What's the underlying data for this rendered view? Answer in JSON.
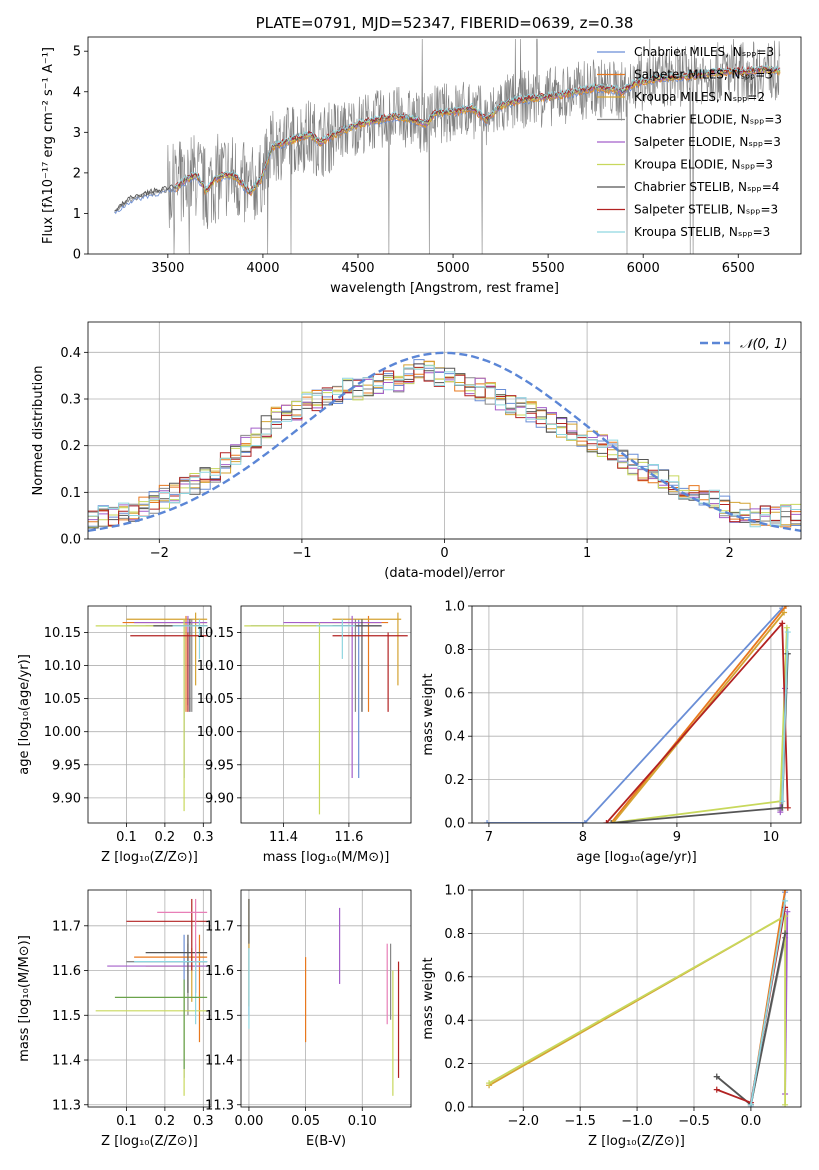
{
  "colors": [
    "#6a8ed6",
    "#e8781e",
    "#d4a332",
    "#888888",
    "#a45fc9",
    "#c8d85c",
    "#555555",
    "#b22222",
    "#8fd6e0",
    "#e87fb7",
    "#6aa34a",
    "#3f8fd0"
  ],
  "chart_data": [
    {
      "id": "spectrum",
      "type": "line",
      "title": "PLATE=0791, MJD=52347, FIBERID=0639, z=0.38",
      "xlabel": "wavelength [Angstrom, rest frame]",
      "ylabel": "Flux [fλ10⁻¹⁷ erg cm⁻² s⁻¹ A⁻¹]",
      "xlim": [
        3080,
        6830
      ],
      "ylim": [
        0,
        5.35
      ],
      "xticks": [
        3500,
        4000,
        4500,
        5000,
        5500,
        6000,
        6500
      ],
      "yticks": [
        0,
        1,
        2,
        3,
        4,
        5
      ],
      "grid": false,
      "legend_position": "top-right",
      "continuum": [
        [
          3220,
          1.05
        ],
        [
          3300,
          1.35
        ],
        [
          3400,
          1.5
        ],
        [
          3500,
          1.6
        ],
        [
          3550,
          1.65
        ],
        [
          3600,
          1.85
        ],
        [
          3650,
          1.95
        ],
        [
          3700,
          1.55
        ],
        [
          3750,
          1.85
        ],
        [
          3800,
          1.95
        ],
        [
          3860,
          1.9
        ],
        [
          3930,
          1.5
        ],
        [
          3990,
          1.85
        ],
        [
          4050,
          2.65
        ],
        [
          4150,
          2.8
        ],
        [
          4250,
          2.95
        ],
        [
          4300,
          2.75
        ],
        [
          4400,
          3.0
        ],
        [
          4500,
          3.2
        ],
        [
          4600,
          3.3
        ],
        [
          4700,
          3.4
        ],
        [
          4800,
          3.3
        ],
        [
          4860,
          3.2
        ],
        [
          4900,
          3.45
        ],
        [
          5000,
          3.5
        ],
        [
          5100,
          3.6
        ],
        [
          5175,
          3.3
        ],
        [
          5250,
          3.65
        ],
        [
          5350,
          3.8
        ],
        [
          5450,
          3.85
        ],
        [
          5550,
          3.9
        ],
        [
          5650,
          4.0
        ],
        [
          5750,
          4.1
        ],
        [
          5850,
          4.05
        ],
        [
          5890,
          4.0
        ],
        [
          5950,
          4.2
        ],
        [
          6050,
          4.3
        ],
        [
          6150,
          4.35
        ],
        [
          6250,
          4.4
        ],
        [
          6350,
          4.45
        ],
        [
          6450,
          4.5
        ],
        [
          6550,
          4.5
        ],
        [
          6650,
          4.55
        ],
        [
          6720,
          4.5
        ]
      ],
      "series": [
        {
          "name": "Chabrier MILES, Nₛₚₚ=3"
        },
        {
          "name": "Salpeter MILES, Nₛₚₚ=3"
        },
        {
          "name": "Kroupa MILES, Nₛₚₚ=2"
        },
        {
          "name": "Chabrier ELODIE, Nₛₚₚ=3"
        },
        {
          "name": "Salpeter ELODIE, Nₛₚₚ=3"
        },
        {
          "name": "Kroupa ELODIE, Nₛₚₚ=3"
        },
        {
          "name": "Chabrier STELIB, Nₛₚₚ=4"
        },
        {
          "name": "Salpeter STELIB, Nₛₚₚ=3"
        },
        {
          "name": "Kroupa STELIB, Nₛₚₚ=3"
        }
      ]
    },
    {
      "id": "residuals",
      "type": "line",
      "xlabel": "(data-model)/error",
      "ylabel": "Normed distribution",
      "xlim": [
        -2.5,
        2.5
      ],
      "ylim": [
        0,
        0.465
      ],
      "xticks": [
        -2,
        -1,
        0,
        1,
        2
      ],
      "yticks": [
        0.0,
        0.1,
        0.2,
        0.3,
        0.4
      ],
      "grid": true,
      "legend_position": "top-right",
      "reference_label": "𝒩(0, 1)",
      "bin_width": 0.1,
      "histogram_envelope": [
        0.04,
        0.05,
        0.05,
        0.06,
        0.06,
        0.07,
        0.08,
        0.09,
        0.1,
        0.11,
        0.12,
        0.13,
        0.14,
        0.16,
        0.18,
        0.2,
        0.22,
        0.24,
        0.26,
        0.27,
        0.28,
        0.29,
        0.3,
        0.3,
        0.31,
        0.32,
        0.32,
        0.33,
        0.33,
        0.34,
        0.34,
        0.35,
        0.36,
        0.36,
        0.35,
        0.35,
        0.34,
        0.33,
        0.32,
        0.31,
        0.3,
        0.29,
        0.28,
        0.27,
        0.26,
        0.25,
        0.24,
        0.23,
        0.22,
        0.21,
        0.2,
        0.19,
        0.17,
        0.16,
        0.15,
        0.14,
        0.13,
        0.12,
        0.11,
        0.1,
        0.09,
        0.08,
        0.07,
        0.06,
        0.06,
        0.05,
        0.05,
        0.05,
        0.05,
        0.05
      ]
    },
    {
      "id": "age_vs_Z",
      "type": "scatter",
      "xlabel": "Z [log₁₀(Z/Z⊙)]",
      "ylabel": "age  [log₁₀(age/yr)]",
      "xlim": [
        0.0,
        0.32
      ],
      "ylim": [
        9.862,
        10.19
      ],
      "xticks": [
        0.1,
        0.2,
        0.3
      ],
      "yticks": [
        9.9,
        9.95,
        10.0,
        10.05,
        10.1,
        10.15
      ],
      "grid": true,
      "points": [
        {
          "x": 0.25,
          "y": 10.16,
          "xl": 0.1,
          "xh": 0.31,
          "yl": 9.93,
          "yh": 10.17
        },
        {
          "x": 0.255,
          "y": 10.165,
          "xl": 0.09,
          "xh": 0.31,
          "yl": 10.03,
          "yh": 10.175
        },
        {
          "x": 0.28,
          "y": 10.17,
          "xl": 0.1,
          "xh": 0.31,
          "yl": 10.07,
          "yh": 10.18
        },
        {
          "x": 0.27,
          "y": 10.16,
          "xl": 0.15,
          "xh": 0.31,
          "yl": 10.03,
          "yh": 10.17
        },
        {
          "x": 0.26,
          "y": 10.165,
          "xl": 0.12,
          "xh": 0.31,
          "yl": 10.04,
          "yh": 10.175
        },
        {
          "x": 0.25,
          "y": 10.16,
          "xl": 0.02,
          "xh": 0.31,
          "yl": 9.88,
          "yh": 10.17
        },
        {
          "x": 0.265,
          "y": 10.16,
          "xl": 0.17,
          "xh": 0.31,
          "yl": 10.03,
          "yh": 10.17
        },
        {
          "x": 0.26,
          "y": 10.145,
          "xl": 0.11,
          "xh": 0.31,
          "yl": 10.03,
          "yh": 10.15
        },
        {
          "x": 0.29,
          "y": 10.16,
          "xl": 0.22,
          "xh": 0.31,
          "yl": 10.11,
          "yh": 10.17
        }
      ]
    },
    {
      "id": "age_vs_mass",
      "type": "scatter",
      "xlabel": "mass [log₁₀(M/M⊙)]",
      "xlim": [
        11.27,
        11.79
      ],
      "ylim": [
        9.862,
        10.19
      ],
      "xticks": [
        11.4,
        11.6
      ],
      "yticks": [
        9.9,
        9.95,
        10.0,
        10.05,
        10.1,
        10.15
      ],
      "grid": true,
      "points": [
        {
          "x": 11.63,
          "y": 10.16,
          "xl": 11.3,
          "xh": 11.7,
          "yl": 9.93,
          "yh": 10.17
        },
        {
          "x": 11.66,
          "y": 10.165,
          "xl": 11.45,
          "xh": 11.72,
          "yl": 10.03,
          "yh": 10.175
        },
        {
          "x": 11.75,
          "y": 10.17,
          "xl": 11.55,
          "xh": 11.76,
          "yl": 10.07,
          "yh": 10.18
        },
        {
          "x": 11.62,
          "y": 10.16,
          "xl": 11.45,
          "xh": 11.7,
          "yl": 10.03,
          "yh": 10.17
        },
        {
          "x": 11.61,
          "y": 10.165,
          "xl": 11.4,
          "xh": 11.7,
          "yl": 9.93,
          "yh": 10.175
        },
        {
          "x": 11.51,
          "y": 10.16,
          "xl": 11.28,
          "xh": 11.58,
          "yl": 9.875,
          "yh": 10.165
        },
        {
          "x": 11.64,
          "y": 10.16,
          "xl": 11.55,
          "xh": 11.7,
          "yl": 10.03,
          "yh": 10.17
        },
        {
          "x": 11.72,
          "y": 10.145,
          "xl": 11.55,
          "xh": 11.78,
          "yl": 10.03,
          "yh": 10.15
        },
        {
          "x": 11.58,
          "y": 10.16,
          "xl": 11.5,
          "xh": 11.62,
          "yl": 10.11,
          "yh": 10.17
        }
      ]
    },
    {
      "id": "weight_vs_age",
      "type": "line",
      "xlabel": "age  [log₁₀(age/yr)]",
      "ylabel": "mass weight",
      "xlim": [
        6.82,
        10.32
      ],
      "ylim": [
        0.0,
        1.0
      ],
      "xticks": [
        7,
        8,
        9,
        10
      ],
      "yticks": [
        0.0,
        0.2,
        0.4,
        0.6,
        0.8,
        1.0
      ],
      "grid": true,
      "series": [
        {
          "points": [
            [
              6.98,
              0.0
            ],
            [
              8.02,
              0.0
            ],
            [
              10.12,
              0.99
            ]
          ]
        },
        {
          "points": [
            [
              8.3,
              0.0
            ],
            [
              10.16,
              1.0
            ]
          ]
        },
        {
          "points": [
            [
              8.32,
              0.0
            ],
            [
              10.14,
              0.97
            ]
          ]
        },
        {
          "points": [
            [
              10.1,
              0.06
            ],
            [
              10.17,
              0.78
            ]
          ]
        },
        {
          "points": [
            [
              10.1,
              0.05
            ],
            [
              10.15,
              0.62
            ]
          ]
        },
        {
          "points": [
            [
              8.3,
              0.0
            ],
            [
              10.1,
              0.1
            ],
            [
              10.17,
              0.9
            ]
          ]
        },
        {
          "points": [
            [
              8.3,
              0.0
            ],
            [
              10.12,
              0.07
            ],
            [
              10.18,
              0.78
            ]
          ]
        },
        {
          "points": [
            [
              8.25,
              0.0
            ],
            [
              10.12,
              0.92
            ],
            [
              10.18,
              0.07
            ]
          ]
        },
        {
          "points": [
            [
              10.12,
              0.1
            ],
            [
              10.18,
              0.88
            ]
          ]
        }
      ]
    },
    {
      "id": "mass_vs_Z",
      "type": "scatter",
      "xlabel": "Z [log₁₀(Z/Z⊙)]",
      "ylabel": "mass [log₁₀(M/M⊙)]",
      "xlim": [
        0.0,
        0.32
      ],
      "ylim": [
        11.295,
        11.78
      ],
      "xticks": [
        0.1,
        0.2,
        0.3
      ],
      "yticks": [
        11.3,
        11.4,
        11.5,
        11.6,
        11.7
      ],
      "grid": true,
      "points": [
        {
          "x": 0.25,
          "y": 11.62,
          "xl": 0.1,
          "xh": 0.31,
          "yl": 11.36,
          "yh": 11.68
        },
        {
          "x": 0.29,
          "y": 11.63,
          "xl": 0.12,
          "xh": 0.31,
          "yl": 11.44,
          "yh": 11.68
        },
        {
          "x": 0.27,
          "y": 11.61,
          "xl": 0.15,
          "xh": 0.3,
          "yl": 11.53,
          "yh": 11.65
        },
        {
          "x": 0.26,
          "y": 11.62,
          "xl": 0.1,
          "xh": 0.31,
          "yl": 11.5,
          "yh": 11.66
        },
        {
          "x": 0.28,
          "y": 11.61,
          "xl": 0.05,
          "xh": 0.31,
          "yl": 11.55,
          "yh": 11.64
        },
        {
          "x": 0.25,
          "y": 11.51,
          "xl": 0.02,
          "xh": 0.31,
          "yl": 11.32,
          "yh": 11.55
        },
        {
          "x": 0.26,
          "y": 11.64,
          "xl": 0.15,
          "xh": 0.31,
          "yl": 11.55,
          "yh": 11.68
        },
        {
          "x": 0.27,
          "y": 11.71,
          "xl": 0.1,
          "xh": 0.31,
          "yl": 11.6,
          "yh": 11.76
        },
        {
          "x": 0.28,
          "y": 11.62,
          "xl": 0.12,
          "xh": 0.31,
          "yl": 11.48,
          "yh": 11.66
        },
        {
          "x": 0.28,
          "y": 11.73,
          "xl": 0.18,
          "xh": 0.31,
          "yl": 11.62,
          "yh": 11.76
        },
        {
          "x": 0.25,
          "y": 11.54,
          "xl": 0.07,
          "xh": 0.31,
          "yl": 11.38,
          "yh": 11.58
        }
      ]
    },
    {
      "id": "mass_vs_EBV",
      "type": "scatter",
      "xlabel": "E(B-V)",
      "xlim": [
        -0.007,
        0.143
      ],
      "ylim": [
        11.295,
        11.78
      ],
      "xticks": [
        0.0,
        0.05,
        0.1
      ],
      "yticks": [
        11.3,
        11.4,
        11.5,
        11.6,
        11.7
      ],
      "grid": true,
      "points": [
        {
          "x": 0.0,
          "y": 11.62,
          "xl": 0.0,
          "xh": 0.0,
          "yl": 11.5,
          "yh": 11.66
        },
        {
          "x": 0.05,
          "y": 11.58,
          "xl": 0.05,
          "xh": 0.05,
          "yl": 11.44,
          "yh": 11.63
        },
        {
          "x": 0.0,
          "y": 11.68,
          "xl": 0.0,
          "xh": 0.0,
          "yl": 11.52,
          "yh": 11.76
        },
        {
          "x": 0.125,
          "y": 11.62,
          "xl": 0.125,
          "xh": 0.125,
          "yl": 11.49,
          "yh": 11.66
        },
        {
          "x": 0.08,
          "y": 11.68,
          "xl": 0.08,
          "xh": 0.08,
          "yl": 11.57,
          "yh": 11.74
        },
        {
          "x": 0.127,
          "y": 11.5,
          "xl": 0.127,
          "xh": 0.127,
          "yl": 11.32,
          "yh": 11.6
        },
        {
          "x": 0.0,
          "y": 11.71,
          "xl": 0.0,
          "xh": 0.0,
          "yl": 11.66,
          "yh": 11.76
        },
        {
          "x": 0.132,
          "y": 11.55,
          "xl": 0.132,
          "xh": 0.132,
          "yl": 11.36,
          "yh": 11.62
        },
        {
          "x": 0.0,
          "y": 11.6,
          "xl": 0.0,
          "xh": 0.0,
          "yl": 11.47,
          "yh": 11.65
        },
        {
          "x": 0.122,
          "y": 11.6,
          "xl": 0.122,
          "xh": 0.122,
          "yl": 11.48,
          "yh": 11.66
        }
      ]
    },
    {
      "id": "weight_vs_Z",
      "type": "line",
      "xlabel": "Z [log₁₀(Z/Z⊙)]",
      "ylabel": "mass weight",
      "xlim": [
        -2.45,
        0.44
      ],
      "ylim": [
        0.0,
        1.0
      ],
      "xticks": [
        -2.0,
        -1.5,
        -1.0,
        -0.5,
        0.0
      ],
      "yticks": [
        0.0,
        0.2,
        0.4,
        0.6,
        0.8,
        1.0
      ],
      "grid": true,
      "series": [
        {
          "points": [
            [
              0.0,
              0.0
            ],
            [
              0.3,
              0.99
            ]
          ]
        },
        {
          "points": [
            [
              0.0,
              0.01
            ],
            [
              0.3,
              1.0
            ]
          ]
        },
        {
          "points": [
            [
              -2.3,
              0.1
            ],
            [
              0.3,
              0.88
            ]
          ]
        },
        {
          "points": [
            [
              -0.3,
              0.14
            ],
            [
              0.0,
              0.01
            ],
            [
              0.3,
              0.78
            ]
          ]
        },
        {
          "points": [
            [
              0.3,
              0.06
            ],
            [
              0.32,
              0.9
            ]
          ]
        },
        {
          "points": [
            [
              -2.3,
              0.11
            ],
            [
              0.3,
              0.88
            ],
            [
              0.3,
              0.01
            ]
          ]
        },
        {
          "points": [
            [
              -0.3,
              0.14
            ],
            [
              0.0,
              0.01
            ],
            [
              0.3,
              0.8
            ]
          ]
        },
        {
          "points": [
            [
              -0.3,
              0.08
            ],
            [
              0.0,
              0.02
            ],
            [
              0.3,
              0.92
            ]
          ]
        },
        {
          "points": [
            [
              0.0,
              0.01
            ],
            [
              0.3,
              0.95
            ]
          ]
        }
      ]
    }
  ]
}
